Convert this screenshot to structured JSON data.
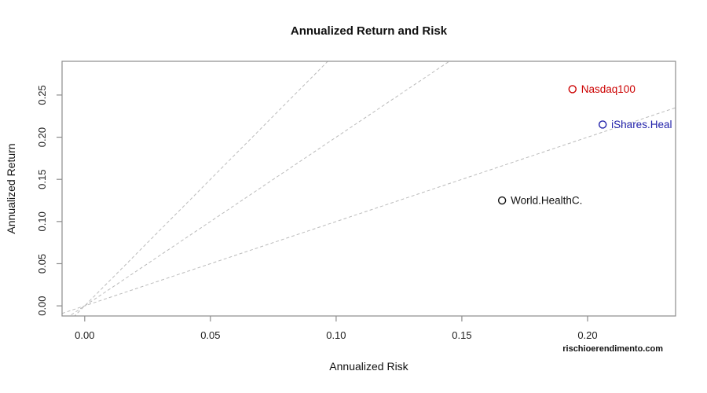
{
  "title": "Annualized Return and Risk",
  "watermark": "rischioerendimento.com",
  "colors": {
    "frame": "#8c8c8c",
    "tick_text": "#222222",
    "reference_line": "#bbbbbb",
    "nasdaq_red": "#cc0000",
    "ishares_blue": "#2222aa",
    "world_black": "#111111"
  },
  "chart_data": {
    "type": "scatter",
    "title": "Annualized Return and Risk",
    "xlabel": "Annualized Risk",
    "ylabel": "Annualized Return",
    "xlim": [
      -0.009,
      0.235
    ],
    "ylim": [
      -0.012,
      0.29
    ],
    "x_ticks": [
      0.0,
      0.05,
      0.1,
      0.15,
      0.2
    ],
    "y_ticks": [
      0.0,
      0.05,
      0.1,
      0.15,
      0.2,
      0.25
    ],
    "grid": false,
    "legend": "none",
    "points": [
      {
        "label": "Nasdaq100",
        "x": 0.194,
        "y": 0.257,
        "color": "#cc0000"
      },
      {
        "label": "iShares.Heal",
        "x": 0.206,
        "y": 0.215,
        "color": "#2222aa"
      },
      {
        "label": "World.HealthC.",
        "x": 0.166,
        "y": 0.125,
        "color": "#111111"
      }
    ],
    "reference_lines": [
      {
        "slope": 1,
        "intercept": 0,
        "style": "dashed"
      },
      {
        "slope": 2,
        "intercept": 0,
        "style": "dashed"
      },
      {
        "slope": 3,
        "intercept": 0,
        "style": "dashed"
      }
    ]
  }
}
